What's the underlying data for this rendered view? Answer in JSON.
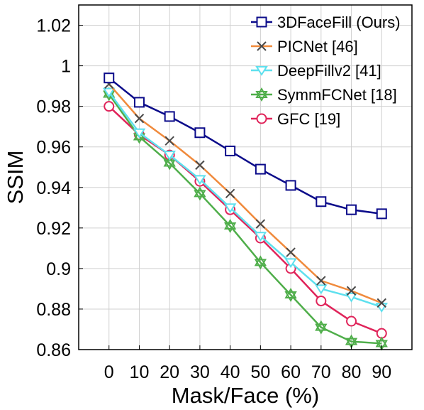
{
  "chart_data": {
    "type": "line",
    "title": "",
    "xlabel": "Mask/Face (%)",
    "ylabel": "SSIM",
    "x": [
      0,
      10,
      20,
      30,
      40,
      50,
      60,
      70,
      80,
      90
    ],
    "x_tick_labels": [
      "0",
      "10",
      "20",
      "30",
      "40",
      "50",
      "60",
      "70",
      "80",
      "90"
    ],
    "y_ticks": [
      0.86,
      0.88,
      0.9,
      0.92,
      0.94,
      0.96,
      0.98,
      1.0,
      1.02
    ],
    "y_tick_labels": [
      "0.86",
      "0.88",
      "0.9",
      "0.92",
      "0.94",
      "0.96",
      "0.98",
      "1",
      "1.02"
    ],
    "xlim": [
      -10,
      100
    ],
    "ylim": [
      0.86,
      1.03
    ],
    "grid": true,
    "legend_position": "top-right",
    "series": [
      {
        "name": "3DFaceFill (Ours)",
        "color": "#0b0b8a",
        "marker": "square",
        "values": [
          0.994,
          0.982,
          0.975,
          0.967,
          0.958,
          0.949,
          0.941,
          0.933,
          0.929,
          0.927
        ]
      },
      {
        "name": "PICNet [46]",
        "color": "#f08a3c",
        "marker": "x",
        "marker_color": "#4a4a4a",
        "values": [
          0.991,
          0.974,
          0.963,
          0.951,
          0.937,
          0.922,
          0.908,
          0.894,
          0.889,
          0.883
        ]
      },
      {
        "name": "DeepFillv2 [41]",
        "color": "#5ee0ee",
        "marker": "triangle-down",
        "values": [
          0.987,
          0.967,
          0.956,
          0.944,
          0.93,
          0.916,
          0.903,
          0.89,
          0.886,
          0.881
        ]
      },
      {
        "name": "SymmFCNet [18]",
        "color": "#4fae4a",
        "marker": "hexagram",
        "values": [
          0.986,
          0.965,
          0.952,
          0.937,
          0.921,
          0.903,
          0.887,
          0.871,
          0.864,
          0.863
        ]
      },
      {
        "name": "GFC [19]",
        "color": "#e0245a",
        "marker": "circle",
        "values": [
          0.98,
          0.966,
          0.956,
          0.943,
          0.929,
          0.915,
          0.9,
          0.884,
          0.874,
          0.868
        ]
      }
    ]
  }
}
